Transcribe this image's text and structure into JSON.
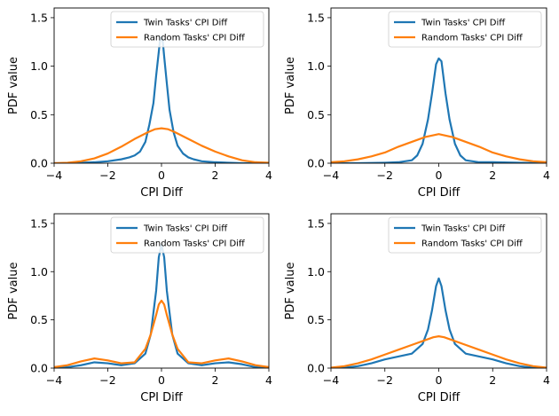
{
  "chart_data": [
    {
      "type": "line",
      "xlabel": "CPI Diff",
      "ylabel": "PDF value",
      "xlim": [
        -4,
        4
      ],
      "ylim": [
        0,
        1.6
      ],
      "xticks": [
        "-4",
        "-2",
        "0",
        "2",
        "4"
      ],
      "yticks": [
        "0.0",
        "0.5",
        "1.0",
        "1.5"
      ],
      "legend_position": "top-right",
      "series": [
        {
          "name": "Twin Tasks' CPI Diff",
          "color": "#1f77b4",
          "x": [
            -4,
            -3.5,
            -3,
            -2.5,
            -2,
            -1.5,
            -1.2,
            -1,
            -0.8,
            -0.6,
            -0.45,
            -0.3,
            -0.2,
            -0.1,
            -0.05,
            0,
            0.05,
            0.1,
            0.2,
            0.3,
            0.45,
            0.6,
            0.8,
            1,
            1.2,
            1.5,
            2,
            2.5,
            3,
            3.5,
            4
          ],
          "y": [
            0.0,
            0.0,
            0.005,
            0.01,
            0.02,
            0.04,
            0.06,
            0.08,
            0.12,
            0.22,
            0.4,
            0.62,
            0.9,
            1.15,
            1.28,
            1.3,
            1.25,
            1.1,
            0.82,
            0.55,
            0.32,
            0.18,
            0.1,
            0.06,
            0.04,
            0.02,
            0.01,
            0.005,
            0.0,
            0.0,
            0.0
          ]
        },
        {
          "name": "Random Tasks' CPI Diff",
          "color": "#ff7f0e",
          "x": [
            -4,
            -3.5,
            -3,
            -2.5,
            -2,
            -1.5,
            -1,
            -0.5,
            -0.25,
            0,
            0.25,
            0.5,
            1,
            1.5,
            2,
            2.5,
            3,
            3.5,
            4
          ],
          "y": [
            0.0,
            0.005,
            0.02,
            0.05,
            0.1,
            0.17,
            0.25,
            0.32,
            0.35,
            0.36,
            0.35,
            0.32,
            0.25,
            0.18,
            0.12,
            0.07,
            0.03,
            0.01,
            0.005
          ]
        }
      ]
    },
    {
      "type": "line",
      "xlabel": "CPI Diff",
      "ylabel": "PDF value",
      "xlim": [
        -4,
        4
      ],
      "ylim": [
        0,
        1.6
      ],
      "xticks": [
        "-4",
        "-2",
        "0",
        "2",
        "4"
      ],
      "yticks": [
        "0.0",
        "0.5",
        "1.0",
        "1.5"
      ],
      "legend_position": "top-right",
      "series": [
        {
          "name": "Twin Tasks' CPI Diff",
          "color": "#1f77b4",
          "x": [
            -4,
            -3,
            -2,
            -1.5,
            -1,
            -0.8,
            -0.6,
            -0.4,
            -0.25,
            -0.1,
            0,
            0.1,
            0.25,
            0.4,
            0.6,
            0.8,
            1,
            1.5,
            2,
            3,
            4
          ],
          "y": [
            0.0,
            0.0,
            0.005,
            0.01,
            0.03,
            0.08,
            0.2,
            0.45,
            0.72,
            1.02,
            1.08,
            1.05,
            0.72,
            0.45,
            0.2,
            0.08,
            0.03,
            0.01,
            0.01,
            0.005,
            0.0
          ]
        },
        {
          "name": "Random Tasks' CPI Diff",
          "color": "#ff7f0e",
          "x": [
            -4,
            -3.5,
            -3,
            -2.5,
            -2,
            -1.5,
            -1,
            -0.5,
            0,
            0.5,
            1,
            1.5,
            2,
            2.5,
            3,
            3.5,
            4
          ],
          "y": [
            0.01,
            0.02,
            0.04,
            0.07,
            0.11,
            0.17,
            0.22,
            0.27,
            0.3,
            0.27,
            0.22,
            0.17,
            0.11,
            0.07,
            0.04,
            0.02,
            0.01
          ]
        }
      ]
    },
    {
      "type": "line",
      "xlabel": "CPI Diff",
      "ylabel": "PDF value",
      "xlim": [
        -4,
        4
      ],
      "ylim": [
        0,
        1.6
      ],
      "xticks": [
        "-4",
        "-2",
        "0",
        "2",
        "4"
      ],
      "yticks": [
        "0.0",
        "0.5",
        "1.0",
        "1.5"
      ],
      "legend_position": "top-right",
      "series": [
        {
          "name": "Twin Tasks' CPI Diff",
          "color": "#1f77b4",
          "x": [
            -4,
            -3.5,
            -3,
            -2.5,
            -2,
            -1.5,
            -1,
            -0.6,
            -0.4,
            -0.2,
            -0.1,
            0,
            0.1,
            0.2,
            0.4,
            0.6,
            1,
            1.5,
            2,
            2.5,
            3,
            3.5,
            4
          ],
          "y": [
            0.0,
            0.01,
            0.03,
            0.06,
            0.05,
            0.03,
            0.05,
            0.15,
            0.35,
            0.8,
            1.15,
            1.28,
            1.15,
            0.8,
            0.35,
            0.15,
            0.05,
            0.03,
            0.05,
            0.06,
            0.04,
            0.01,
            0.0
          ]
        },
        {
          "name": "Random Tasks' CPI Diff",
          "color": "#ff7f0e",
          "x": [
            -4,
            -3.5,
            -3,
            -2.5,
            -2,
            -1.5,
            -1,
            -0.6,
            -0.4,
            -0.2,
            -0.1,
            0,
            0.1,
            0.2,
            0.4,
            0.6,
            1,
            1.5,
            2,
            2.5,
            3,
            3.5,
            4
          ],
          "y": [
            0.01,
            0.03,
            0.07,
            0.1,
            0.08,
            0.05,
            0.06,
            0.2,
            0.35,
            0.55,
            0.66,
            0.7,
            0.66,
            0.55,
            0.35,
            0.2,
            0.06,
            0.05,
            0.08,
            0.1,
            0.07,
            0.03,
            0.01
          ]
        }
      ]
    },
    {
      "type": "line",
      "xlabel": "CPI Diff",
      "ylabel": "PDF value",
      "xlim": [
        -4,
        4
      ],
      "ylim": [
        0,
        1.6
      ],
      "xticks": [
        "-4",
        "-2",
        "0",
        "2",
        "4"
      ],
      "yticks": [
        "0.0",
        "0.5",
        "1.0",
        "1.5"
      ],
      "legend_position": "top-right",
      "series": [
        {
          "name": "Twin Tasks' CPI Diff",
          "color": "#1f77b4",
          "x": [
            -4,
            -3.5,
            -3,
            -2.5,
            -2,
            -1.5,
            -1,
            -0.6,
            -0.4,
            -0.25,
            -0.1,
            0,
            0.1,
            0.25,
            0.4,
            0.6,
            1,
            1.5,
            2,
            2.5,
            3,
            3.5,
            4
          ],
          "y": [
            0.0,
            0.005,
            0.02,
            0.05,
            0.09,
            0.12,
            0.15,
            0.25,
            0.4,
            0.6,
            0.85,
            0.93,
            0.85,
            0.6,
            0.4,
            0.25,
            0.15,
            0.12,
            0.09,
            0.05,
            0.02,
            0.005,
            0.0
          ]
        },
        {
          "name": "Random Tasks' CPI Diff",
          "color": "#ff7f0e",
          "x": [
            -4,
            -3.5,
            -3,
            -2.5,
            -2,
            -1.5,
            -1,
            -0.5,
            -0.2,
            0,
            0.2,
            0.5,
            1,
            1.5,
            2,
            2.5,
            3,
            3.5,
            4
          ],
          "y": [
            0.005,
            0.02,
            0.05,
            0.09,
            0.14,
            0.19,
            0.24,
            0.29,
            0.32,
            0.33,
            0.32,
            0.29,
            0.24,
            0.19,
            0.14,
            0.09,
            0.05,
            0.02,
            0.005
          ]
        }
      ]
    }
  ]
}
